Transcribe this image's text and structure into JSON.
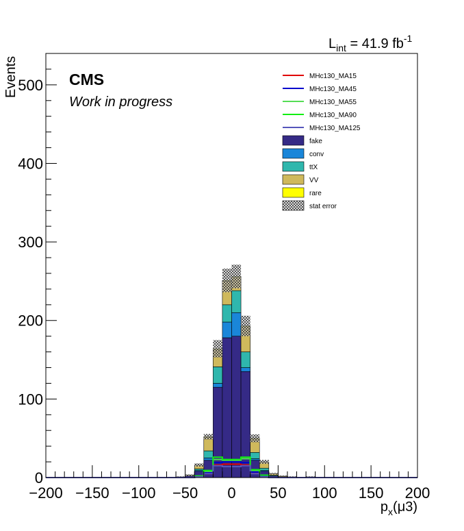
{
  "chart_data": {
    "type": "bar",
    "stacked": true,
    "title": "",
    "cms_label": "CMS",
    "status_label": "Work in progress",
    "lumi_label": {
      "main": "L",
      "sub": "int",
      "value": " = 41.9 fb",
      "sup": "-1"
    },
    "ylabel": "Events",
    "xlabel": {
      "main": "p",
      "sub": "x",
      "rest": "(μ3)"
    },
    "xlim": [
      -200,
      200
    ],
    "ylim": [
      0,
      540
    ],
    "xticks": [
      -200,
      -150,
      -100,
      -50,
      0,
      50,
      100,
      150,
      200
    ],
    "xtick_labels": [
      "−200",
      "−150",
      "−100",
      "−50",
      "0",
      "50",
      "100",
      "150",
      "200"
    ],
    "yticks": [
      0,
      100,
      200,
      300,
      400,
      500
    ],
    "ytick_labels": [
      "0",
      "100",
      "200",
      "300",
      "400",
      "500"
    ],
    "bin_edges": [
      -200,
      -190,
      -180,
      -170,
      -160,
      -150,
      -140,
      -130,
      -120,
      -110,
      -100,
      -90,
      -80,
      -70,
      -60,
      -50,
      -40,
      -30,
      -20,
      -10,
      0,
      10,
      20,
      30,
      40,
      50,
      60,
      70,
      80,
      90,
      100,
      110,
      120,
      130,
      140,
      150,
      160,
      170,
      180,
      190,
      200
    ],
    "stack": [
      {
        "name": "fake",
        "color": "#352a86",
        "values": [
          0,
          0,
          0,
          0,
          0,
          0,
          0,
          0,
          0,
          0,
          0,
          0,
          0,
          0,
          1,
          2,
          8,
          22,
          115,
          178,
          180,
          135,
          22,
          8,
          2,
          1,
          1,
          0,
          1,
          0,
          0,
          0,
          0,
          0,
          0,
          0,
          0,
          0,
          0,
          0
        ]
      },
      {
        "name": "conv",
        "color": "#1a86d9",
        "values": [
          0,
          0,
          0,
          0,
          0,
          0,
          0,
          0,
          0,
          0,
          0,
          0,
          0,
          0,
          0,
          0,
          1,
          3,
          5,
          20,
          30,
          5,
          2,
          1,
          0,
          0,
          0,
          0,
          0,
          0,
          0,
          0,
          0,
          0,
          0,
          0,
          0,
          0,
          0,
          0
        ]
      },
      {
        "name": "ttX",
        "color": "#2fb7ad",
        "values": [
          0,
          0,
          0,
          0,
          0,
          0,
          0,
          0,
          0,
          0,
          0,
          0,
          0,
          0,
          0,
          0,
          2,
          9,
          21,
          22,
          28,
          20,
          8,
          3,
          1,
          0,
          0,
          0,
          0,
          0,
          0,
          0,
          0,
          0,
          0,
          0,
          0,
          0,
          0,
          0
        ]
      },
      {
        "name": "VV",
        "color": "#cfb95c",
        "values": [
          0,
          0,
          0,
          0,
          0,
          0,
          0,
          0,
          0,
          0,
          0,
          0,
          0,
          0,
          0,
          1,
          5,
          17,
          22,
          30,
          17,
          32,
          17,
          8,
          2,
          1,
          0,
          0,
          0,
          0,
          0,
          0,
          0,
          0,
          0,
          0,
          0,
          0,
          0,
          0
        ]
      },
      {
        "name": "rare",
        "color": "#ffff00",
        "values": [
          0,
          0,
          0,
          0,
          0,
          0,
          0,
          0,
          0,
          0,
          0,
          0,
          0,
          0,
          0,
          0,
          0,
          1,
          1,
          1,
          1,
          1,
          1,
          0,
          0,
          0,
          0,
          0,
          0,
          0,
          0,
          0,
          0,
          0,
          0,
          0,
          0,
          0,
          0,
          0
        ]
      }
    ],
    "stat_error": {
      "name": "stat error",
      "values": [
        0,
        0,
        0,
        0,
        0,
        0,
        0,
        0,
        0,
        0,
        0,
        0,
        0,
        0,
        0.5,
        1,
        2,
        3.5,
        11,
        15,
        15,
        13,
        5,
        2.5,
        1,
        0.5,
        0.5,
        0,
        0.5,
        0,
        0,
        0,
        0,
        0,
        0,
        0,
        0,
        0,
        0,
        0
      ]
    },
    "signals": [
      {
        "name": "MHc130_MA15",
        "color": "#e00000",
        "values": [
          0,
          0,
          0,
          0,
          0,
          0,
          0,
          0,
          0,
          0,
          0,
          0,
          0,
          0,
          0,
          0,
          1,
          5,
          16,
          17,
          17,
          16,
          6,
          1,
          0,
          0,
          0,
          0,
          0,
          0,
          0,
          0,
          0,
          0,
          0,
          0,
          0,
          0,
          0,
          0
        ]
      },
      {
        "name": "MHc130_MA45",
        "color": "#0000cc",
        "values": [
          0,
          0,
          0,
          0,
          0,
          0,
          0,
          0,
          0,
          0,
          0,
          0,
          0,
          0,
          0,
          0,
          1,
          6,
          19,
          20,
          20,
          19,
          7,
          2,
          0,
          0,
          0,
          0,
          0,
          0,
          0,
          0,
          0,
          0,
          0,
          0,
          0,
          0,
          0,
          0
        ]
      },
      {
        "name": "MHc130_MA55",
        "color": "#55dd55",
        "values": [
          0,
          0,
          0,
          0,
          0,
          0,
          0,
          0,
          0,
          0,
          0,
          0,
          0,
          0,
          0,
          0,
          2,
          8,
          23,
          22,
          22,
          24,
          9,
          3,
          0,
          0,
          0,
          0,
          0,
          0,
          0,
          0,
          0,
          0,
          0,
          0,
          0,
          0,
          0,
          0
        ]
      },
      {
        "name": "MHc130_MA90",
        "color": "#11ee11",
        "values": [
          0,
          0,
          0,
          0,
          0,
          0,
          0,
          0,
          0,
          0,
          0,
          0,
          0,
          0,
          0,
          0,
          2,
          9,
          26,
          23,
          23,
          26,
          10,
          3,
          0,
          0,
          0,
          0,
          0,
          0,
          0,
          0,
          0,
          0,
          0,
          0,
          0,
          0,
          0,
          0
        ]
      },
      {
        "name": "MHc130_MA125",
        "color": "#5555bb",
        "values": [
          0,
          0,
          0,
          0,
          0,
          0,
          0,
          0,
          0,
          0,
          0,
          0,
          0,
          0,
          0,
          0,
          1,
          5,
          15,
          14,
          14,
          15,
          5,
          1,
          0,
          0,
          0,
          0,
          0,
          0,
          0,
          0,
          0,
          0,
          0,
          0,
          0,
          0,
          0,
          0
        ]
      }
    ],
    "legend": {
      "position": "top-right",
      "entries": [
        {
          "label": "MHc130_MA15",
          "kind": "line",
          "color": "#e00000"
        },
        {
          "label": "MHc130_MA45",
          "kind": "line",
          "color": "#0000cc"
        },
        {
          "label": "MHc130_MA55",
          "kind": "line",
          "color": "#55dd55"
        },
        {
          "label": "MHc130_MA90",
          "kind": "line",
          "color": "#11ee11"
        },
        {
          "label": "MHc130_MA125",
          "kind": "line",
          "color": "#5555bb"
        },
        {
          "label": "fake",
          "kind": "box",
          "color": "#352a86"
        },
        {
          "label": "conv",
          "kind": "box",
          "color": "#1a86d9"
        },
        {
          "label": "ttX",
          "kind": "box",
          "color": "#2fb7ad"
        },
        {
          "label": "VV",
          "kind": "box",
          "color": "#cfb95c"
        },
        {
          "label": "rare",
          "kind": "box",
          "color": "#ffff00"
        },
        {
          "label": "stat error",
          "kind": "hatch",
          "color": "#555555"
        }
      ]
    },
    "grid": false
  }
}
